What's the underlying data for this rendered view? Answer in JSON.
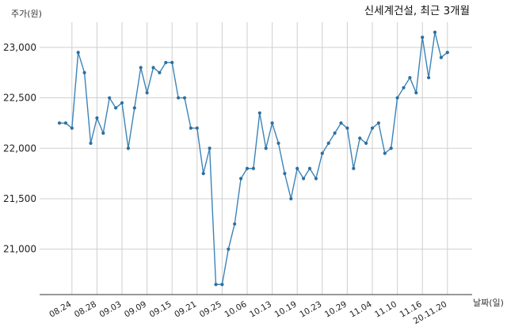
{
  "chart_data": {
    "type": "line",
    "title": "신세계건설, 최근 3개월",
    "ylabel": "주가(원)",
    "xlabel": "날짜(일)",
    "ylim": [
      20550,
      23250
    ],
    "yticks": [
      21000,
      21500,
      22000,
      22500,
      23000
    ],
    "ytick_labels": [
      "21,000",
      "21,500",
      "22,000",
      "22,500",
      "23,000"
    ],
    "grid": true,
    "colors": {
      "line": "#3b84b8",
      "marker": "#2e6f9e"
    },
    "xtick_labels": [
      "08.24",
      "08.28",
      "09.03",
      "09.09",
      "09.15",
      "09.21",
      "09.25",
      "10.06",
      "10.13",
      "10.19",
      "10.23",
      "10.29",
      "11.04",
      "11.10",
      "11.16",
      "20.11.20"
    ],
    "xtick_index": [
      2,
      6,
      10,
      14,
      18,
      22,
      26,
      30,
      34,
      38,
      42,
      46,
      50,
      54,
      58,
      62
    ],
    "values": [
      22250,
      22250,
      22200,
      22950,
      22750,
      22050,
      22300,
      22150,
      22500,
      22400,
      22450,
      22000,
      22400,
      22800,
      22550,
      22800,
      22750,
      22850,
      22850,
      22500,
      22500,
      22200,
      22200,
      21750,
      22000,
      20650,
      20650,
      21000,
      21250,
      21700,
      21800,
      21800,
      22350,
      22000,
      22250,
      22050,
      21750,
      21500,
      21800,
      21700,
      21800,
      21700,
      21950,
      22050,
      22150,
      22250,
      22200,
      21800,
      22100,
      22050,
      22200,
      22250,
      21950,
      22000,
      22500,
      22600,
      22700,
      22550,
      23100,
      22700,
      23150,
      22900,
      22950
    ]
  }
}
